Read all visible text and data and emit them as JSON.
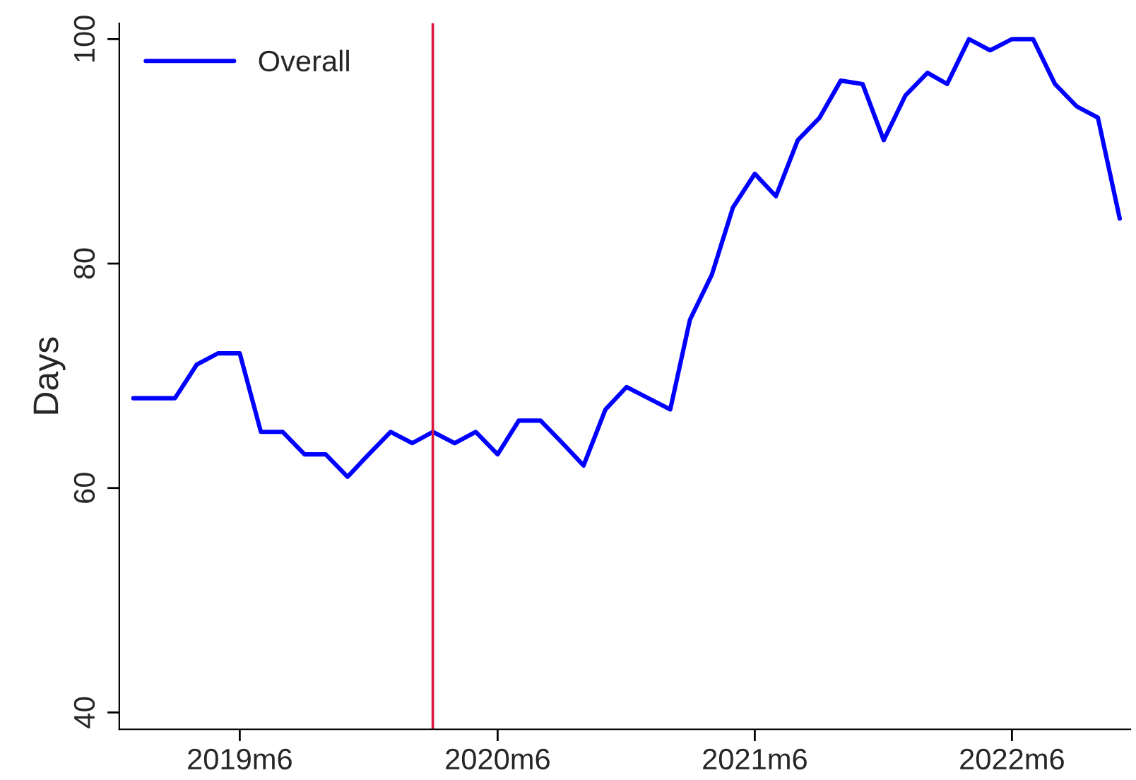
{
  "chart_data": {
    "type": "line",
    "ylabel": "Days",
    "x": [
      "2019-01",
      "2019-02",
      "2019-03",
      "2019-04",
      "2019-05",
      "2019-06",
      "2019-07",
      "2019-08",
      "2019-09",
      "2019-10",
      "2019-11",
      "2019-12",
      "2020-01",
      "2020-02",
      "2020-03",
      "2020-04",
      "2020-05",
      "2020-06",
      "2020-07",
      "2020-08",
      "2020-09",
      "2020-10",
      "2020-11",
      "2020-12",
      "2021-01",
      "2021-02",
      "2021-03",
      "2021-04",
      "2021-05",
      "2021-06",
      "2021-07",
      "2021-08",
      "2021-09",
      "2021-10",
      "2021-11",
      "2021-12",
      "2022-01",
      "2022-02",
      "2022-03",
      "2022-04",
      "2022-05",
      "2022-06",
      "2022-07",
      "2022-08",
      "2022-09",
      "2022-10",
      "2022-11"
    ],
    "series": [
      {
        "name": "Overall",
        "color": "#0000ff",
        "values": [
          68,
          68,
          68,
          71,
          72,
          72,
          65,
          65,
          63,
          63,
          61,
          63,
          65,
          64,
          65,
          64,
          65,
          63,
          66,
          66,
          64,
          62,
          67,
          69,
          68,
          67,
          75,
          79,
          85,
          88,
          86,
          91,
          93,
          96.3,
          96,
          91,
          95,
          97,
          96,
          100,
          99,
          100,
          100,
          96,
          94,
          93,
          84
        ]
      }
    ],
    "xlim": [
      "2018-12-12",
      "2022-11-16"
    ],
    "ylim": [
      38.5,
      101.4
    ],
    "xticks": [
      {
        "value": "2019-06",
        "label": "2019m6"
      },
      {
        "value": "2020-06",
        "label": "2020m6"
      },
      {
        "value": "2021-06",
        "label": "2021m6"
      },
      {
        "value": "2022-06",
        "label": "2022m6"
      }
    ],
    "yticks": [
      40,
      60,
      80,
      100
    ],
    "ref_lines": [
      {
        "axis": "x",
        "value": "2020-03",
        "color": "#dc143c"
      }
    ],
    "grid": false,
    "legend": "top left",
    "line_style": "solid",
    "marker": "none"
  }
}
